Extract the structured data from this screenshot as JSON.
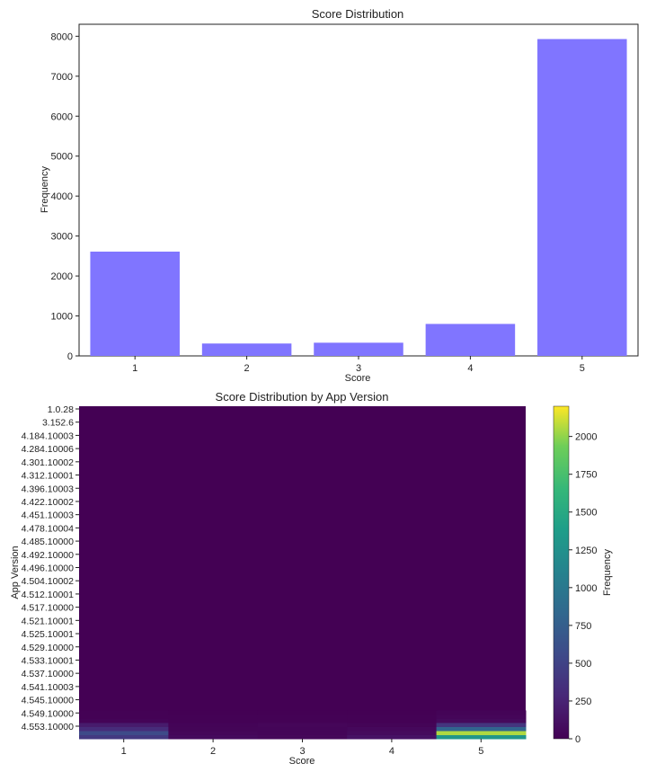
{
  "chart_data": [
    {
      "type": "bar",
      "title": "Score Distribution",
      "xlabel": "Score",
      "ylabel": "Frequency",
      "categories": [
        "1",
        "2",
        "3",
        "4",
        "5"
      ],
      "values": [
        2610,
        310,
        330,
        800,
        7930
      ],
      "ylim": [
        0,
        8300
      ],
      "yticks": [
        "0",
        "1000",
        "2000",
        "3000",
        "4000",
        "5000",
        "6000",
        "7000",
        "8000"
      ],
      "bar_color": "#8075ff",
      "grid": false
    },
    {
      "type": "heatmap",
      "title": "Score Distribution by App Version",
      "xlabel": "Score",
      "ylabel": "App Version",
      "x_categories": [
        "1",
        "2",
        "3",
        "4",
        "5"
      ],
      "y_tick_labels": [
        "1.0.28",
        "3.152.6",
        "4.184.10003",
        "4.284.10006",
        "4.301.10002",
        "4.312.10001",
        "4.396.10003",
        "4.422.10002",
        "4.451.10003",
        "4.478.10004",
        "4.485.10000",
        "4.492.10000",
        "4.496.10000",
        "4.504.10002",
        "4.512.10001",
        "4.517.10000",
        "4.521.10001",
        "4.525.10001",
        "4.529.10000",
        "4.533.10001",
        "4.537.10000",
        "4.541.10003",
        "4.545.10000",
        "4.549.10000",
        "4.553.10000"
      ],
      "colorbar": {
        "label": "Frequency",
        "range": [
          0,
          2200
        ],
        "ticks": [
          "0",
          "250",
          "500",
          "750",
          "1000",
          "1250",
          "1500",
          "1750",
          "2000"
        ],
        "colormap": "viridis"
      },
      "highlight_rows": [
        {
          "row_from_bottom": 0,
          "values": [
            420,
            60,
            40,
            120,
            1300
          ]
        },
        {
          "row_from_bottom": 1,
          "values": [
            560,
            40,
            30,
            70,
            2050
          ]
        },
        {
          "row_from_bottom": 2,
          "values": [
            310,
            25,
            30,
            50,
            800
          ]
        },
        {
          "row_from_bottom": 3,
          "values": [
            180,
            20,
            35,
            25,
            380
          ]
        },
        {
          "row_from_bottom": 4,
          "values": [
            20,
            8,
            10,
            10,
            60
          ]
        },
        {
          "row_from_bottom": 5,
          "values": [
            10,
            5,
            5,
            5,
            35
          ]
        },
        {
          "row_from_bottom": 6,
          "values": [
            5,
            3,
            3,
            3,
            20
          ]
        }
      ]
    }
  ]
}
